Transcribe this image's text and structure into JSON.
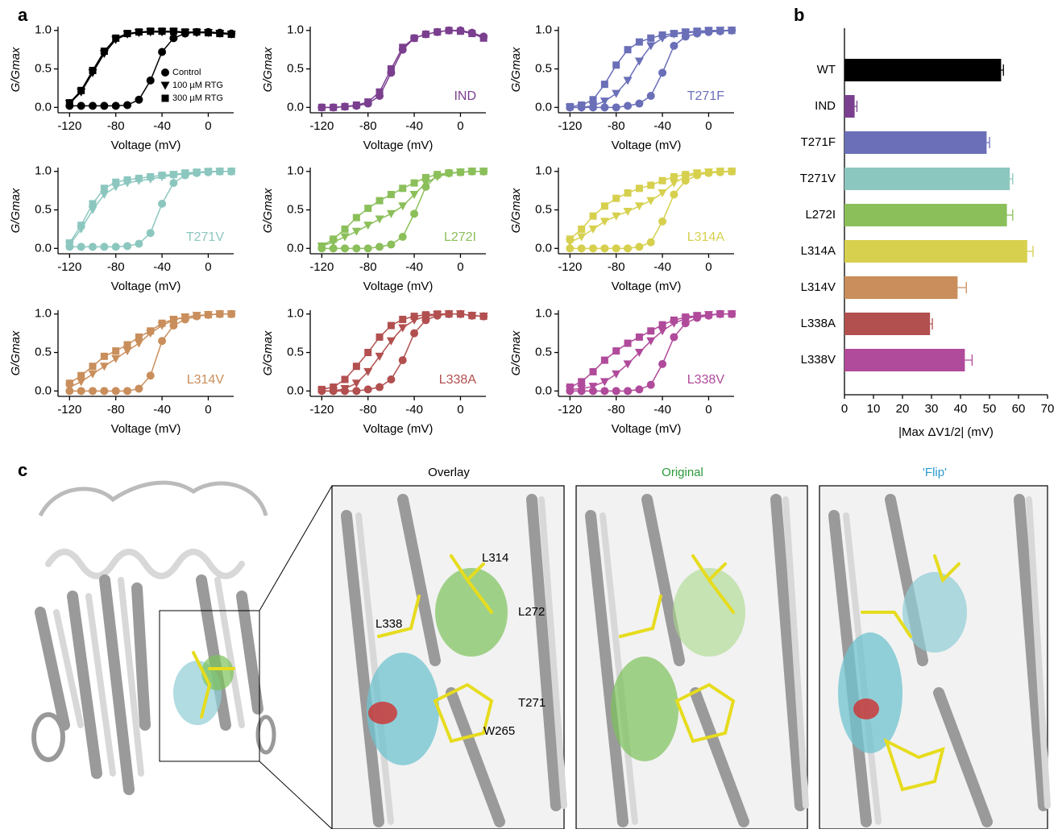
{
  "panel_labels": [
    "a",
    "b",
    "c"
  ],
  "chart_data": [
    {
      "type": "line",
      "annotation": null,
      "color": "#000000",
      "x_label": "Voltage (mV)",
      "y_label": "G/Gmax",
      "legend": "inside-right",
      "grid": false,
      "x": [
        -120,
        -110,
        -100,
        -90,
        -80,
        -70,
        -60,
        -50,
        -40,
        -30,
        -20,
        -10,
        0,
        10,
        20
      ],
      "xlim": [
        -130,
        22
      ],
      "xticks": [
        -120,
        -80,
        -40,
        0
      ],
      "ylim": [
        -0.07,
        1.05
      ],
      "yticks": [
        {
          "value": 0,
          "label": "0.0"
        },
        {
          "value": 0.5,
          "label": "0.5"
        },
        {
          "value": 1,
          "label": "1.0"
        }
      ],
      "series": [
        {
          "name": "Control",
          "marker": "circle",
          "values": [
            0.02,
            0.02,
            0.02,
            0.02,
            0.02,
            0.03,
            0.1,
            0.35,
            0.72,
            0.9,
            0.96,
            0.98,
            0.98,
            0.97,
            0.96
          ]
        },
        {
          "name": "100 µM RTG",
          "marker": "triangle",
          "values": [
            0.05,
            0.2,
            0.45,
            0.7,
            0.88,
            0.95,
            0.97,
            0.98,
            0.98,
            0.98,
            0.97,
            0.97,
            0.97,
            0.96,
            0.95
          ]
        },
        {
          "name": "300 µM RTG",
          "marker": "square",
          "values": [
            0.06,
            0.22,
            0.48,
            0.73,
            0.9,
            0.96,
            0.98,
            0.99,
            0.99,
            0.99,
            0.98,
            0.98,
            0.97,
            0.96,
            0.95
          ]
        }
      ]
    },
    {
      "type": "line",
      "annotation": "IND",
      "color": "#7b3f8f",
      "x_label": "Voltage (mV)",
      "y_label": "G/Gmax",
      "grid": false,
      "x": [
        -120,
        -110,
        -100,
        -90,
        -80,
        -70,
        -60,
        -50,
        -40,
        -30,
        -20,
        -10,
        0,
        10,
        20
      ],
      "xlim": [
        -130,
        22
      ],
      "xticks": [
        -120,
        -80,
        -40,
        0
      ],
      "ylim": [
        -0.07,
        1.05
      ],
      "yticks": [
        {
          "value": 0,
          "label": "0.0"
        },
        {
          "value": 0.5,
          "label": "0.5"
        },
        {
          "value": 1,
          "label": "1.0"
        }
      ],
      "series": [
        {
          "marker": "circle",
          "values": [
            0,
            0,
            0.01,
            0.02,
            0.05,
            0.15,
            0.45,
            0.75,
            0.9,
            0.95,
            0.98,
            1,
            1,
            0.97,
            0.92
          ]
        },
        {
          "marker": "square",
          "values": [
            0,
            0,
            0.01,
            0.03,
            0.07,
            0.2,
            0.5,
            0.78,
            0.9,
            0.95,
            0.98,
            1,
            0.99,
            0.96,
            0.9
          ]
        }
      ]
    },
    {
      "type": "line",
      "annotation": "T271F",
      "color": "#6a6fb8",
      "x_label": "Voltage (mV)",
      "y_label": "G/Gmax",
      "grid": false,
      "x": [
        -120,
        -110,
        -100,
        -90,
        -80,
        -70,
        -60,
        -50,
        -40,
        -30,
        -20,
        -10,
        0,
        10,
        20
      ],
      "xlim": [
        -130,
        22
      ],
      "xticks": [
        -120,
        -80,
        -40,
        0
      ],
      "ylim": [
        -0.07,
        1.05
      ],
      "yticks": [
        {
          "value": 0,
          "label": "0.0"
        },
        {
          "value": 0.5,
          "label": "0.5"
        },
        {
          "value": 1,
          "label": "1.0"
        }
      ],
      "series": [
        {
          "marker": "circle",
          "values": [
            0,
            0,
            0,
            0,
            0,
            0.02,
            0.05,
            0.15,
            0.45,
            0.8,
            0.92,
            0.96,
            0.98,
            0.99,
            1
          ]
        },
        {
          "marker": "triangle",
          "values": [
            0,
            0,
            0.02,
            0.08,
            0.18,
            0.35,
            0.6,
            0.8,
            0.9,
            0.95,
            0.97,
            0.98,
            0.99,
            1,
            1
          ]
        },
        {
          "marker": "square",
          "values": [
            0.01,
            0.03,
            0.1,
            0.3,
            0.55,
            0.75,
            0.85,
            0.9,
            0.94,
            0.96,
            0.98,
            0.99,
            1,
            1,
            1
          ]
        }
      ]
    },
    {
      "type": "line",
      "annotation": "T271V",
      "color": "#8cc7bf",
      "x_label": "Voltage (mV)",
      "y_label": "G/Gmax",
      "grid": false,
      "x": [
        -120,
        -110,
        -100,
        -90,
        -80,
        -70,
        -60,
        -50,
        -40,
        -30,
        -20,
        -10,
        0,
        10,
        20
      ],
      "xlim": [
        -130,
        22
      ],
      "xticks": [
        -120,
        -80,
        -40,
        0
      ],
      "ylim": [
        -0.07,
        1.05
      ],
      "yticks": [
        {
          "value": 0,
          "label": "0.0"
        },
        {
          "value": 0.5,
          "label": "0.5"
        },
        {
          "value": 1,
          "label": "1.0"
        }
      ],
      "series": [
        {
          "marker": "circle",
          "values": [
            0.02,
            0.02,
            0.02,
            0.02,
            0.02,
            0.03,
            0.06,
            0.2,
            0.58,
            0.85,
            0.95,
            0.98,
            0.99,
            1,
            1
          ]
        },
        {
          "marker": "triangle",
          "values": [
            0.05,
            0.25,
            0.5,
            0.7,
            0.8,
            0.85,
            0.88,
            0.9,
            0.93,
            0.95,
            0.97,
            0.98,
            0.99,
            1,
            1
          ]
        },
        {
          "marker": "square",
          "values": [
            0.07,
            0.3,
            0.58,
            0.78,
            0.86,
            0.89,
            0.91,
            0.93,
            0.95,
            0.96,
            0.98,
            0.99,
            1,
            1,
            1
          ]
        }
      ]
    },
    {
      "type": "line",
      "annotation": "L272I",
      "color": "#8bbf5a",
      "x_label": "Voltage (mV)",
      "y_label": "G/Gmax",
      "grid": false,
      "x": [
        -120,
        -110,
        -100,
        -90,
        -80,
        -70,
        -60,
        -50,
        -40,
        -30,
        -20,
        -10,
        0,
        10,
        20
      ],
      "xlim": [
        -130,
        22
      ],
      "xticks": [
        -120,
        -80,
        -40,
        0
      ],
      "ylim": [
        -0.07,
        1.05
      ],
      "yticks": [
        {
          "value": 0,
          "label": "0.0"
        },
        {
          "value": 0.5,
          "label": "0.5"
        },
        {
          "value": 1,
          "label": "1.0"
        }
      ],
      "series": [
        {
          "marker": "circle",
          "values": [
            0,
            0,
            0,
            0,
            0,
            0.02,
            0.05,
            0.15,
            0.45,
            0.8,
            0.95,
            0.98,
            0.99,
            1,
            1
          ]
        },
        {
          "marker": "triangle",
          "values": [
            0.03,
            0.08,
            0.15,
            0.22,
            0.3,
            0.38,
            0.45,
            0.55,
            0.7,
            0.85,
            0.93,
            0.97,
            0.99,
            1,
            1
          ]
        },
        {
          "marker": "square",
          "values": [
            0.03,
            0.12,
            0.25,
            0.4,
            0.52,
            0.62,
            0.7,
            0.78,
            0.85,
            0.92,
            0.96,
            0.98,
            0.99,
            1,
            1
          ]
        }
      ]
    },
    {
      "type": "line",
      "annotation": "L314A",
      "color": "#d6d04e",
      "x_label": "Voltage (mV)",
      "y_label": "G/Gmax",
      "grid": false,
      "x": [
        -120,
        -110,
        -100,
        -90,
        -80,
        -70,
        -60,
        -50,
        -40,
        -30,
        -20,
        -10,
        0,
        10,
        20
      ],
      "xlim": [
        -130,
        22
      ],
      "xticks": [
        -120,
        -80,
        -40,
        0
      ],
      "ylim": [
        -0.07,
        1.05
      ],
      "yticks": [
        {
          "value": 0,
          "label": "0.0"
        },
        {
          "value": 0.5,
          "label": "0.5"
        },
        {
          "value": 1,
          "label": "1.0"
        }
      ],
      "series": [
        {
          "marker": "circle",
          "values": [
            0,
            0,
            0,
            0,
            0,
            0,
            0.02,
            0.08,
            0.35,
            0.7,
            0.88,
            0.95,
            0.98,
            0.99,
            1
          ]
        },
        {
          "marker": "triangle",
          "values": [
            0.08,
            0.15,
            0.25,
            0.35,
            0.42,
            0.48,
            0.55,
            0.62,
            0.72,
            0.85,
            0.93,
            0.97,
            0.99,
            1,
            1
          ]
        },
        {
          "marker": "square",
          "values": [
            0.12,
            0.25,
            0.42,
            0.55,
            0.65,
            0.72,
            0.78,
            0.82,
            0.88,
            0.93,
            0.96,
            0.98,
            0.99,
            1,
            1
          ]
        }
      ]
    },
    {
      "type": "line",
      "annotation": "L314V",
      "color": "#c98e5b",
      "x_label": "Voltage (mV)",
      "y_label": "G/Gmax",
      "grid": false,
      "x": [
        -120,
        -110,
        -100,
        -90,
        -80,
        -70,
        -60,
        -50,
        -40,
        -30,
        -20,
        -10,
        0,
        10,
        20
      ],
      "xlim": [
        -130,
        22
      ],
      "xticks": [
        -120,
        -80,
        -40,
        0
      ],
      "ylim": [
        -0.07,
        1.05
      ],
      "yticks": [
        {
          "value": 0,
          "label": "0.0"
        },
        {
          "value": 0.5,
          "label": "0.5"
        },
        {
          "value": 1,
          "label": "1.0"
        }
      ],
      "series": [
        {
          "marker": "circle",
          "values": [
            0,
            0,
            0,
            0,
            0,
            0,
            0.03,
            0.2,
            0.65,
            0.85,
            0.93,
            0.97,
            0.99,
            1,
            1
          ]
        },
        {
          "marker": "triangle",
          "values": [
            0.05,
            0.12,
            0.22,
            0.32,
            0.42,
            0.52,
            0.62,
            0.75,
            0.85,
            0.92,
            0.96,
            0.98,
            0.99,
            1,
            1
          ]
        },
        {
          "marker": "square",
          "values": [
            0.1,
            0.2,
            0.32,
            0.45,
            0.52,
            0.6,
            0.7,
            0.78,
            0.88,
            0.93,
            0.96,
            0.98,
            0.99,
            1,
            1
          ]
        }
      ]
    },
    {
      "type": "line",
      "annotation": "L338A",
      "color": "#b24f4f",
      "x_label": "Voltage (mV)",
      "y_label": "G/Gmax",
      "grid": false,
      "x": [
        -120,
        -110,
        -100,
        -90,
        -80,
        -70,
        -60,
        -50,
        -40,
        -30,
        -20,
        -10,
        0,
        10,
        20
      ],
      "xlim": [
        -130,
        22
      ],
      "xticks": [
        -120,
        -80,
        -40,
        0
      ],
      "ylim": [
        -0.07,
        1.05
      ],
      "yticks": [
        {
          "value": 0,
          "label": "0.0"
        },
        {
          "value": 0.5,
          "label": "0.5"
        },
        {
          "value": 1,
          "label": "1.0"
        }
      ],
      "series": [
        {
          "marker": "circle",
          "values": [
            0,
            0,
            0,
            0,
            0.02,
            0.05,
            0.15,
            0.4,
            0.75,
            0.92,
            0.98,
            1,
            1,
            0.98,
            0.97
          ]
        },
        {
          "marker": "triangle",
          "values": [
            0,
            0,
            0.03,
            0.1,
            0.25,
            0.45,
            0.65,
            0.82,
            0.92,
            0.97,
            0.99,
            1,
            1,
            0.98,
            0.97
          ]
        },
        {
          "marker": "square",
          "values": [
            0.02,
            0.05,
            0.15,
            0.32,
            0.5,
            0.7,
            0.85,
            0.93,
            0.97,
            0.99,
            1,
            1,
            1,
            0.98,
            0.97
          ]
        }
      ]
    },
    {
      "type": "line",
      "annotation": "L338V",
      "color": "#b04a9a",
      "x_label": "Voltage (mV)",
      "y_label": "G/Gmax",
      "grid": false,
      "x": [
        -120,
        -110,
        -100,
        -90,
        -80,
        -70,
        -60,
        -50,
        -40,
        -30,
        -20,
        -10,
        0,
        10,
        20
      ],
      "xlim": [
        -130,
        22
      ],
      "xticks": [
        -120,
        -80,
        -40,
        0
      ],
      "ylim": [
        -0.07,
        1.05
      ],
      "yticks": [
        {
          "value": 0,
          "label": "0.0"
        },
        {
          "value": 0.5,
          "label": "0.5"
        },
        {
          "value": 1,
          "label": "1.0"
        }
      ],
      "series": [
        {
          "marker": "circle",
          "values": [
            0,
            0,
            0,
            0,
            0,
            0,
            0.02,
            0.08,
            0.35,
            0.7,
            0.88,
            0.95,
            0.98,
            1,
            1
          ]
        },
        {
          "marker": "triangle",
          "values": [
            0.02,
            0.03,
            0.06,
            0.12,
            0.22,
            0.35,
            0.5,
            0.65,
            0.78,
            0.88,
            0.94,
            0.97,
            0.99,
            1,
            1
          ]
        },
        {
          "marker": "square",
          "values": [
            0.05,
            0.12,
            0.25,
            0.4,
            0.52,
            0.62,
            0.7,
            0.78,
            0.86,
            0.92,
            0.96,
            0.98,
            0.99,
            1,
            1
          ]
        }
      ]
    },
    {
      "type": "hbar",
      "x_label": "|Max ΔV1/2| (mV)",
      "grid": false,
      "categories": [
        "WT",
        "IND",
        "T271F",
        "T271V",
        "L272I",
        "L314A",
        "L314V",
        "L338A",
        "L338V"
      ],
      "values": [
        54,
        3.5,
        49,
        57,
        56,
        63,
        39,
        29.5,
        41.5
      ],
      "errors": [
        0.8,
        0.8,
        1,
        1,
        2,
        2,
        3,
        0.8,
        2.5
      ],
      "colors": [
        "#000000",
        "#7b3f8f",
        "#6a6fb8",
        "#8cc7bf",
        "#8bbf5a",
        "#d6d04e",
        "#c98e5b",
        "#b24f4f",
        "#b04a9a"
      ],
      "xlim": [
        0,
        70
      ],
      "xticks": [
        0,
        10,
        20,
        30,
        40,
        50,
        60,
        70
      ]
    }
  ],
  "structure_panels": {
    "titles": [
      "Overlay",
      "Original",
      "'Flip'"
    ],
    "residues": [
      "L314",
      "L272",
      "L338",
      "T271",
      "W265"
    ]
  }
}
